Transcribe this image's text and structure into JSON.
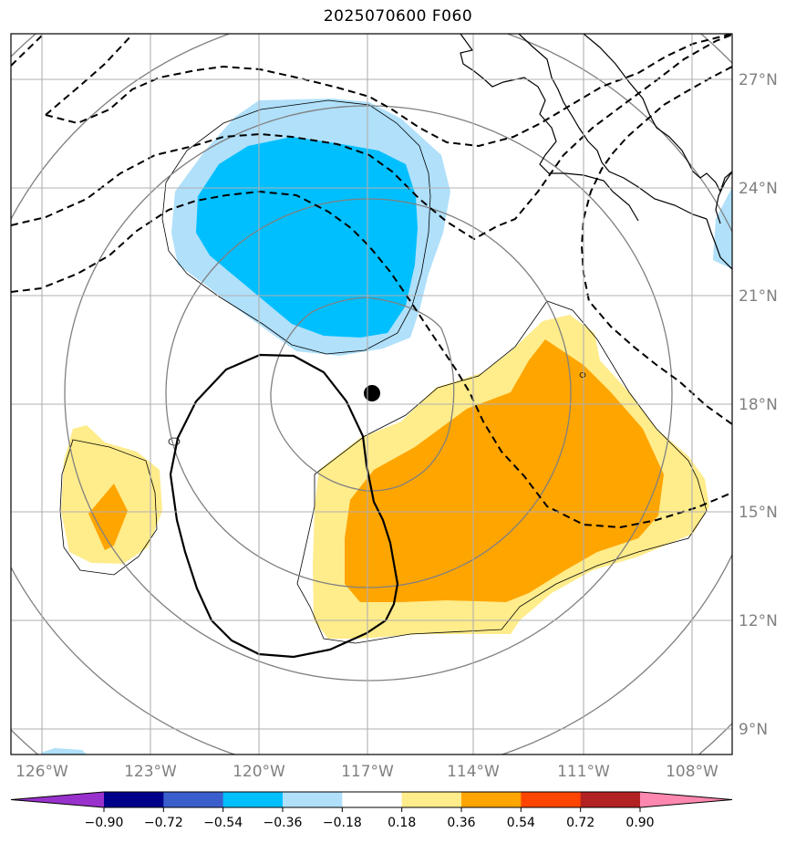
{
  "title": "2025070600 F060",
  "latitude_labels": [
    "27°N",
    "24°N",
    "21°N",
    "18°N",
    "15°N",
    "12°N",
    "9°N"
  ],
  "longitude_labels": [
    "126°W",
    "123°W",
    "120°W",
    "117°W",
    "114°W",
    "111°W",
    "108°W"
  ],
  "colorbar": {
    "ticks": [
      "−0.90",
      "−0.72",
      "−0.54",
      "−0.36",
      "−0.18",
      "0.18",
      "0.36",
      "0.54",
      "0.72",
      "0.90"
    ],
    "colors": [
      "#9932cc",
      "#00008b",
      "#3a5fcd",
      "#00bfff",
      "#b0e0fa",
      "#ffffff",
      "#ffec8b",
      "#ffa500",
      "#ff4500",
      "#b22222",
      "#ff88b0"
    ]
  },
  "colors": {
    "grid": "#b0b0b0",
    "range_rings": "#808080",
    "coastline": "#000000",
    "storm_center": "#000000"
  },
  "features": {
    "storm_center_marker": "filled black circle",
    "contours": [
      "dashed black contours",
      "solid black closed contour"
    ],
    "shading": "blue negative anomaly (north), yellow-orange positive anomaly (southeast)"
  }
}
